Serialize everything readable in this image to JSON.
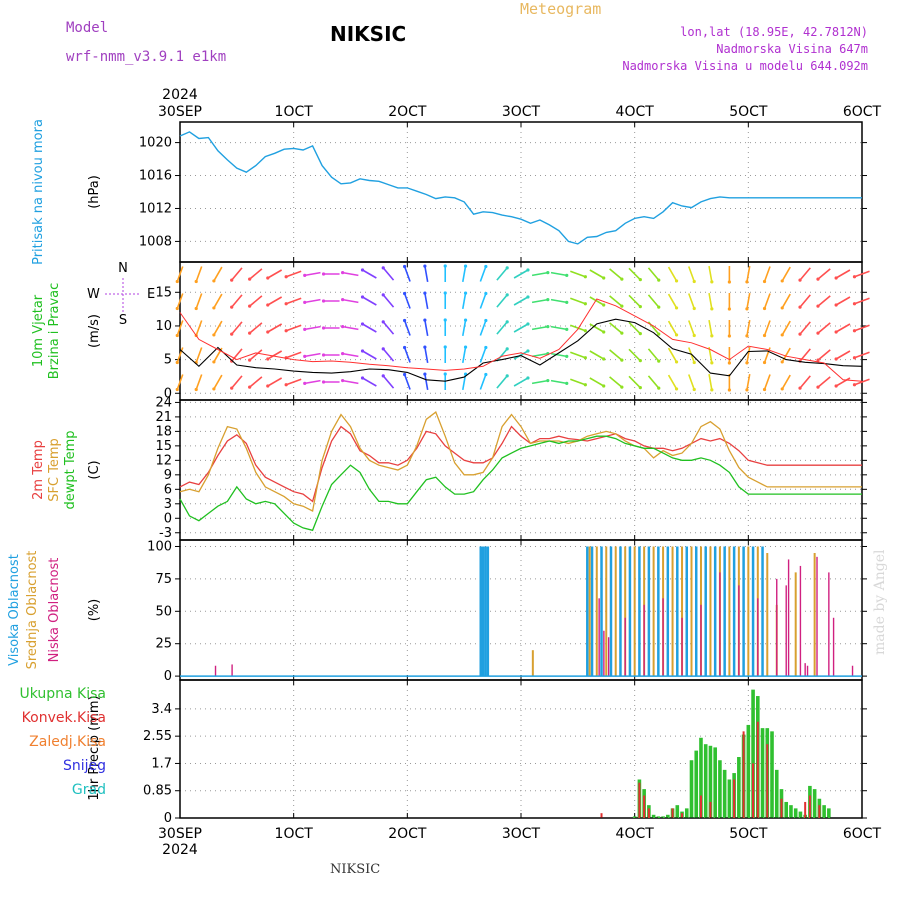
{
  "header": {
    "model_label": "Model",
    "model_name": "wrf-nmm_v3.9.1 e1km",
    "station": "NIKSIC",
    "meteogram": "Meteogram",
    "coords": "lon,lat (18.95E, 42.7812N)",
    "elevation": "Nadmorska Visina 647m",
    "model_elevation": "Nadmorska Visina u modelu 644.092m",
    "credit": "made by Angel",
    "footer_station": "NIKSIC"
  },
  "colors": {
    "pressure": "#20a0e0",
    "temp2m": "#e84040",
    "sfc": "#d8a030",
    "dewpt": "#20c020",
    "high_cloud": "#20a0e0",
    "mid_cloud": "#d8a030",
    "low_cloud": "#d02080",
    "total_precip": "#30c030",
    "conv_precip": "#e03030",
    "frz_precip": "#f08030",
    "snow": "#3030e0",
    "grad": "#20c0c0"
  },
  "x_axis": {
    "top_year": "2024",
    "bottom_year": "2024",
    "ticks": [
      "30SEP",
      "1OCT",
      "2OCT",
      "3OCT",
      "4OCT",
      "5OCT",
      "6OCT"
    ]
  },
  "chart_data": [
    {
      "type": "line",
      "panel": "pressure",
      "ylabel_lines": [
        "Pritisak na nivou mora"
      ],
      "unit": "(hPa)",
      "yticks": [
        1008,
        1012,
        1016,
        1020
      ],
      "ylim": [
        1005.5,
        1022.5
      ],
      "x_hours": [
        0,
        2,
        4,
        6,
        8,
        10,
        12,
        14,
        16,
        18,
        20,
        22,
        24,
        26,
        28,
        30,
        32,
        34,
        36,
        38,
        40,
        42,
        44,
        46,
        48,
        50,
        52,
        54,
        56,
        58,
        60,
        62,
        64,
        66,
        68,
        70,
        72,
        74,
        76,
        78,
        80,
        82,
        84,
        86,
        88,
        90,
        92,
        94,
        96,
        98,
        100,
        102,
        104,
        106,
        108,
        110,
        112,
        114,
        116,
        118,
        120,
        122,
        124,
        126,
        128,
        130,
        132,
        134,
        136,
        138,
        140,
        142,
        144
      ],
      "series": [
        {
          "values": [
            1020.8,
            1021.3,
            1020.5,
            1020.6,
            1019.0,
            1017.9,
            1016.9,
            1016.4,
            1017.2,
            1018.3,
            1018.7,
            1019.2,
            1019.3,
            1019.1,
            1019.6,
            1017.2,
            1015.8,
            1015.0,
            1015.1,
            1015.6,
            1015.4,
            1015.3,
            1014.9,
            1014.5,
            1014.5,
            1014.1,
            1013.7,
            1013.2,
            1013.4,
            1013.3,
            1012.8,
            1011.3,
            1011.6,
            1011.5,
            1011.2,
            1011.0,
            1010.7,
            1010.2,
            1010.6,
            1010.0,
            1009.3,
            1008.0,
            1007.7,
            1008.5,
            1008.6,
            1009.1,
            1009.3,
            1010.2,
            1010.8,
            1011.0,
            1010.8,
            1011.6,
            1012.7,
            1012.3,
            1012.1,
            1012.8,
            1013.2,
            1013.4,
            1013.3,
            1013.3,
            1013.3,
            1013.3,
            1013.3,
            1013.3,
            1013.3,
            1013.3,
            1013.3,
            1013.3,
            1013.3,
            1013.3,
            1013.3,
            1013.3,
            1013.3
          ]
        }
      ]
    },
    {
      "type": "line",
      "panel": "wind",
      "ylabel_lines": [
        "10m Vjetar",
        "Brzina i Pravac"
      ],
      "unit": "(m/s)",
      "compass": [
        "N",
        "E",
        "S",
        "W"
      ],
      "yticks": [
        0,
        5,
        10,
        15
      ],
      "ylim": [
        -1,
        19.5
      ],
      "x_hours": [
        0,
        4,
        8,
        12,
        16,
        20,
        24,
        28,
        32,
        36,
        40,
        44,
        48,
        52,
        56,
        60,
        64,
        68,
        72,
        76,
        80,
        84,
        88,
        92,
        96,
        100,
        104,
        108,
        112,
        116,
        120,
        124,
        128,
        132,
        136,
        140,
        144
      ],
      "series": [
        {
          "name": "speed",
          "values": [
            6.5,
            4.0,
            6.8,
            4.2,
            3.8,
            3.6,
            3.3,
            3.1,
            3.0,
            3.2,
            3.6,
            3.5,
            3.1,
            2.0,
            1.8,
            2.4,
            4.5,
            5.0,
            5.6,
            4.2,
            6.0,
            7.8,
            10.3,
            11.0,
            10.5,
            9.0,
            6.6,
            5.8,
            3.0,
            2.6,
            6.2,
            6.3,
            5.0,
            4.6,
            4.4,
            4.1,
            4.0
          ]
        },
        {
          "name": "gust",
          "values": [
            12.0,
            8.0,
            6.5,
            5.0,
            6.0,
            5.5,
            5.0,
            4.7,
            4.8,
            4.6,
            4.3,
            4.1,
            3.8,
            3.6,
            3.4,
            3.6,
            4.0,
            5.5,
            6.0,
            5.2,
            6.5,
            9.5,
            14.0,
            13.0,
            11.5,
            10.0,
            8.0,
            7.5,
            6.5,
            5.0,
            7.0,
            6.5,
            5.5,
            5.0,
            4.5,
            2.0,
            1.8
          ]
        }
      ],
      "wind_dir_deg": [
        200,
        200,
        210,
        220,
        230,
        240,
        250,
        260,
        270,
        280,
        300,
        320,
        340,
        350,
        0,
        10,
        20,
        40,
        60,
        80,
        100,
        110,
        120,
        130,
        135,
        140,
        150,
        160,
        170,
        180,
        190,
        200,
        210,
        220,
        230,
        240,
        250
      ]
    },
    {
      "type": "line",
      "panel": "temperature",
      "ylabel_lines": [
        "2m Temp",
        "SFC Temp",
        "dewpt Temp"
      ],
      "unit": "(C)",
      "yticks": [
        -3,
        0,
        3,
        6,
        9,
        12,
        15,
        18,
        21,
        24
      ],
      "ylim": [
        -4.5,
        24.5
      ],
      "x_hours": [
        0,
        2,
        4,
        6,
        8,
        10,
        12,
        14,
        16,
        18,
        20,
        22,
        24,
        26,
        28,
        30,
        32,
        34,
        36,
        38,
        40,
        42,
        44,
        46,
        48,
        50,
        52,
        54,
        56,
        58,
        60,
        62,
        64,
        66,
        68,
        70,
        72,
        74,
        76,
        78,
        80,
        82,
        84,
        86,
        88,
        90,
        92,
        94,
        96,
        98,
        100,
        102,
        104,
        106,
        108,
        110,
        112,
        114,
        116,
        118,
        120,
        122,
        124,
        126,
        128,
        130,
        132,
        134,
        136,
        138,
        140,
        142,
        144
      ],
      "series": [
        {
          "name": "2m Temp",
          "values": [
            6.5,
            7.5,
            7.0,
            9.5,
            13.0,
            16.0,
            17.3,
            15.5,
            11.0,
            8.5,
            7.5,
            6.5,
            5.5,
            5.0,
            3.5,
            10.5,
            16.0,
            19.0,
            17.5,
            14.0,
            13.0,
            11.5,
            11.5,
            11.0,
            12.0,
            14.5,
            18.0,
            17.5,
            15.0,
            13.5,
            12.0,
            11.5,
            11.5,
            12.5,
            15.5,
            19.0,
            17.0,
            15.5,
            16.5,
            16.5,
            17.0,
            16.5,
            16.3,
            16.0,
            16.5,
            17.0,
            17.5,
            16.5,
            16.0,
            15.0,
            14.5,
            14.5,
            14.0,
            14.5,
            15.5,
            16.5,
            16.0,
            16.5,
            15.5,
            14.0,
            12.0,
            11.5,
            11.0,
            11.0,
            11.0,
            11.0,
            11.0,
            11.0,
            11.0,
            11.0,
            11.0,
            11.0,
            11.0
          ]
        },
        {
          "name": "SFC Temp",
          "values": [
            5.5,
            6.0,
            5.5,
            9.0,
            14.5,
            19.0,
            18.5,
            14.5,
            9.5,
            6.5,
            5.5,
            4.5,
            3.0,
            2.5,
            1.5,
            12.0,
            18.0,
            21.5,
            19.0,
            14.5,
            12.0,
            11.0,
            10.5,
            10.0,
            11.0,
            15.0,
            20.5,
            22.0,
            17.0,
            11.5,
            9.0,
            9.0,
            9.5,
            12.5,
            19.0,
            21.5,
            19.0,
            15.5,
            16.0,
            16.0,
            16.0,
            15.5,
            16.0,
            17.0,
            17.5,
            18.0,
            17.5,
            16.0,
            15.0,
            14.5,
            12.5,
            14.0,
            13.0,
            13.5,
            15.5,
            19.0,
            20.0,
            18.5,
            14.0,
            10.5,
            8.5,
            7.5,
            6.5,
            6.5,
            6.5,
            6.5,
            6.5,
            6.5,
            6.5,
            6.5,
            6.5,
            6.5,
            6.5
          ]
        },
        {
          "name": "dewpt Temp",
          "values": [
            4.0,
            0.5,
            -0.5,
            1.0,
            2.5,
            3.5,
            6.5,
            4.0,
            3.0,
            3.5,
            3.0,
            1.0,
            -1.0,
            -2.0,
            -2.5,
            2.5,
            7.0,
            9.0,
            11.0,
            9.5,
            6.0,
            3.5,
            3.5,
            3.0,
            3.0,
            5.5,
            8.0,
            8.5,
            6.5,
            5.0,
            5.0,
            5.5,
            8.0,
            10.0,
            12.5,
            13.5,
            14.5,
            15.0,
            15.5,
            16.0,
            15.5,
            16.0,
            16.0,
            16.5,
            17.0,
            17.0,
            16.5,
            15.5,
            15.0,
            14.5,
            14.5,
            13.5,
            12.5,
            12.0,
            12.0,
            12.5,
            12.0,
            11.0,
            9.5,
            6.5,
            5.0,
            5.0,
            5.0,
            5.0,
            5.0,
            5.0,
            5.0,
            5.0,
            5.0,
            5.0,
            5.0,
            5.0,
            5.0
          ]
        }
      ]
    },
    {
      "type": "bar",
      "panel": "clouds",
      "ylabel_lines": [
        "Visoka Oblacnost",
        "Srednja Oblacnost",
        "Niska Oblacnost"
      ],
      "unit": "(%)",
      "yticks": [
        0,
        25,
        50,
        75,
        100
      ],
      "ylim": [
        -3,
        105
      ],
      "series": [
        {
          "name": "Visoka Oblacnost",
          "x_hours": [
            63.5,
            64,
            64.5,
            65,
            86,
            87,
            89,
            91,
            93,
            95,
            97,
            99,
            101,
            103,
            105,
            107,
            109,
            111,
            113,
            115,
            117,
            119,
            121,
            123
          ],
          "values": [
            100,
            100,
            100,
            100,
            100,
            100,
            100,
            100,
            100,
            100,
            100,
            100,
            100,
            100,
            100,
            100,
            100,
            100,
            100,
            100,
            100,
            100,
            100,
            100
          ]
        },
        {
          "name": "Srednja Oblacnost",
          "x_hours": [
            74.5,
            86.5,
            88,
            90,
            92,
            94,
            96,
            98,
            100,
            102,
            104,
            106,
            108,
            110,
            112,
            114,
            116,
            118,
            120,
            122,
            124,
            126,
            130,
            134
          ],
          "values": [
            20,
            100,
            100,
            100,
            100,
            100,
            100,
            100,
            100,
            100,
            100,
            100,
            100,
            100,
            100,
            100,
            100,
            100,
            100,
            100,
            95,
            55,
            80,
            95
          ]
        },
        {
          "name": "Niska Oblacnost",
          "x_hours": [
            7.5,
            11,
            88.5,
            89.5,
            90.5,
            94,
            98,
            102,
            106,
            110,
            114,
            118,
            122,
            126,
            128,
            128.5,
            131,
            132,
            132.5,
            134.5,
            137,
            138,
            142
          ],
          "values": [
            8,
            9,
            60,
            35,
            30,
            45,
            55,
            60,
            45,
            55,
            80,
            70,
            60,
            75,
            70,
            90,
            85,
            10,
            8,
            92,
            80,
            45,
            8
          ]
        }
      ]
    },
    {
      "type": "bar",
      "panel": "precipitation",
      "ylabel_lines": [
        "1hr Precip (mm)"
      ],
      "unit": "",
      "legend": [
        "Ukupna Kisa",
        "Konvek.Kisa",
        "Zaledj.Kisa",
        "Snijeg",
        "Grad"
      ],
      "yticks": [
        0,
        0.85,
        1.7,
        2.55,
        3.4
      ],
      "ylim": [
        0,
        4.3
      ],
      "series": [
        {
          "name": "Ukupna Kisa",
          "x_hours": [
            96,
            97,
            98,
            99,
            100,
            101,
            102,
            103,
            104,
            105,
            106,
            107,
            108,
            109,
            110,
            111,
            112,
            113,
            114,
            115,
            116,
            117,
            118,
            119,
            120,
            121,
            122,
            123,
            124,
            125,
            126,
            127,
            128,
            129,
            130,
            131,
            132,
            133,
            134,
            135,
            136,
            137
          ],
          "values": [
            0.05,
            1.2,
            0.9,
            0.4,
            0.1,
            0.05,
            0.05,
            0.1,
            0.3,
            0.4,
            0.2,
            0.3,
            1.8,
            2.1,
            2.5,
            2.3,
            2.25,
            2.2,
            1.8,
            1.5,
            1.2,
            1.4,
            1.9,
            2.6,
            2.9,
            4.0,
            3.8,
            2.8,
            2.8,
            2.7,
            1.5,
            0.9,
            0.5,
            0.4,
            0.3,
            0.2,
            0.1,
            1.0,
            0.9,
            0.6,
            0.4,
            0.3
          ]
        },
        {
          "name": "Konvek.Kisa",
          "x_hours": [
            89,
            97,
            98,
            99,
            104,
            106,
            110,
            112,
            117,
            119,
            121,
            122,
            124,
            127,
            132,
            133,
            135
          ],
          "values": [
            0.15,
            1.1,
            0.7,
            0.3,
            0.3,
            0.15,
            0.7,
            0.5,
            1.2,
            2.7,
            1.7,
            3.0,
            2.3,
            0.6,
            0.5,
            0.7,
            0.4
          ]
        }
      ]
    }
  ]
}
